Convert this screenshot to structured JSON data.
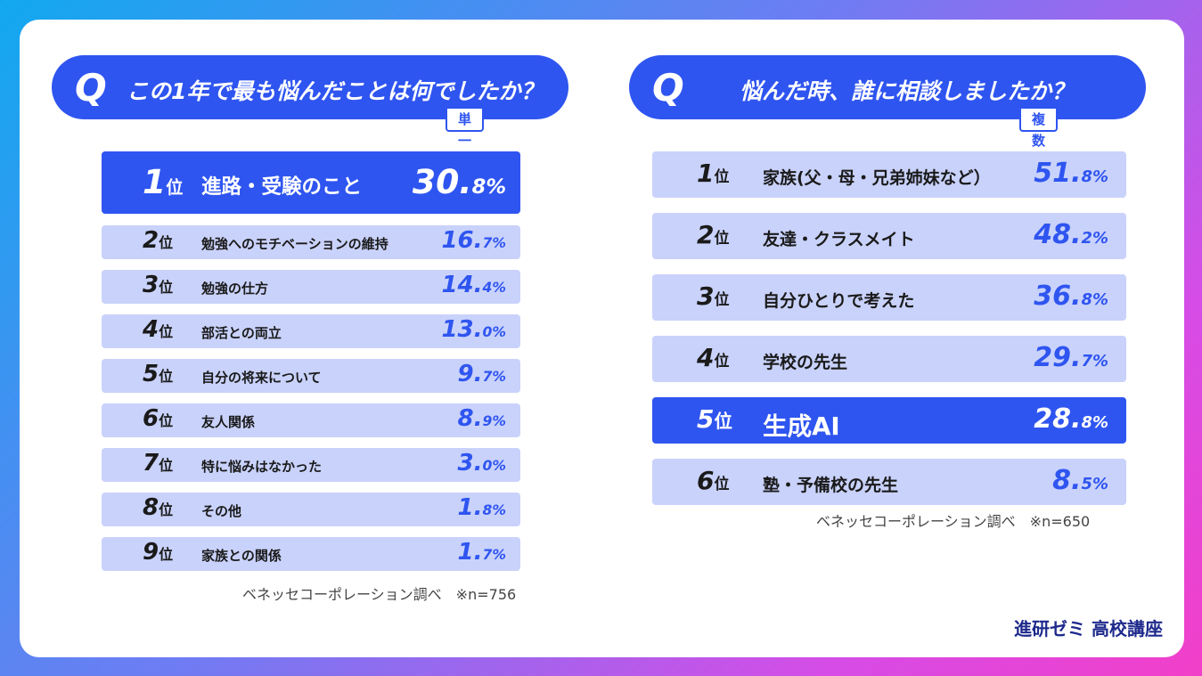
{
  "brand": "進研ゼミ 高校講座",
  "chart_data": [
    {
      "type": "bar",
      "title": "この1年で最も悩んだことは何でしたか？",
      "answer_type": "単一回答",
      "source": "ベネッセコーポレーション調べ　※n=756",
      "unit": "%",
      "accent_color": "#2f55f0",
      "row_color": "#c9d2fb",
      "categories": [
        "進路・受験のこと",
        "勉強へのモチベーションの維持",
        "勉強の仕方",
        "部活との両立",
        "自分の将来について",
        "友人関係",
        "特に悩みはなかった",
        "その他",
        "家族との関係"
      ],
      "ranks": [
        "1",
        "2",
        "3",
        "4",
        "5",
        "6",
        "7",
        "8",
        "9"
      ],
      "values": [
        30.8,
        16.7,
        14.4,
        13.0,
        9.7,
        8.9,
        3.0,
        1.8,
        1.7
      ],
      "value_int": [
        "30.",
        "16.",
        "14.",
        "13.",
        "9.",
        "8.",
        "3.",
        "1.",
        "1."
      ],
      "value_dec": [
        "8%",
        "7%",
        "4%",
        "0%",
        "7%",
        "9%",
        "0%",
        "8%",
        "7%"
      ],
      "highlight_index": 0
    },
    {
      "type": "bar",
      "title": "悩んだ時、誰に相談しましたか？",
      "answer_type": "複数回答",
      "source": "ベネッセコーポレーション調べ　※n=650",
      "unit": "%",
      "accent_color": "#2f55f0",
      "row_color": "#c9d2fb",
      "categories": [
        "家族(父・母・兄弟姉妹など）",
        "友達・クラスメイト",
        "自分ひとりで考えた",
        "学校の先生",
        "生成AI",
        "塾・予備校の先生"
      ],
      "ranks": [
        "1",
        "2",
        "3",
        "4",
        "5",
        "6"
      ],
      "values": [
        51.8,
        48.2,
        36.8,
        29.7,
        28.8,
        8.5
      ],
      "value_int": [
        "51.",
        "48.",
        "36.",
        "29.",
        "28.",
        "8."
      ],
      "value_dec": [
        "8%",
        "2%",
        "8%",
        "7%",
        "8%",
        "5%"
      ],
      "highlight_index": 4
    }
  ],
  "rank_suffix": "位",
  "q_letter": "Q"
}
